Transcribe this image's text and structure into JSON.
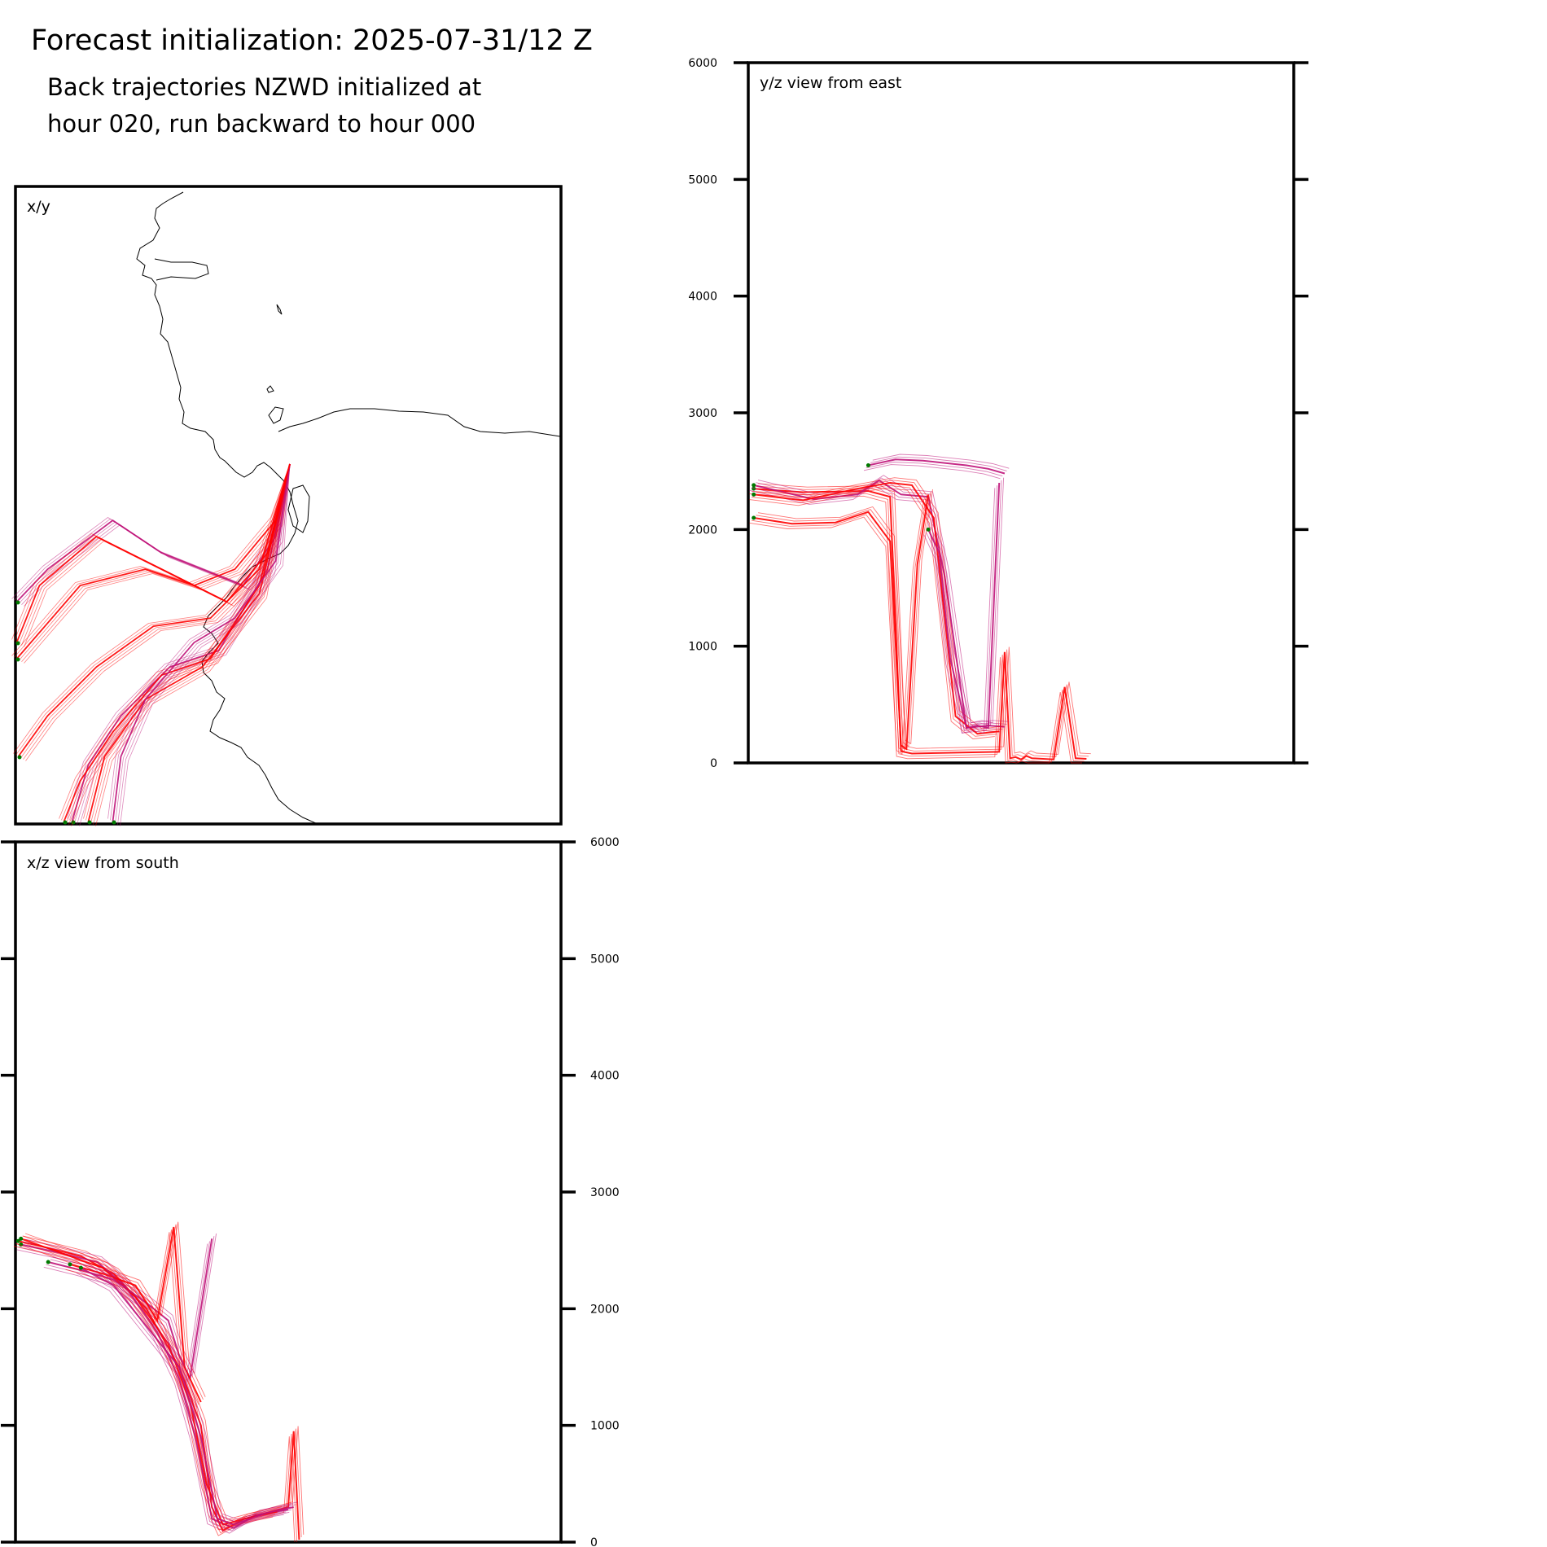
{
  "title": "Forecast initialization: 2025-07-31/12 Z",
  "subtitle_lines": [
    "Back trajectories NZWD initialized at",
    "hour 020, run backward to hour 000"
  ],
  "colors": {
    "trajectory_low": "#ff0000",
    "trajectory_high": "#c0147a",
    "endpoint_marker": "#007a00",
    "coastline": "#000000"
  },
  "chart_data": [
    {
      "type": "line",
      "panel": "x/y",
      "label": "x/y",
      "title": "",
      "xlabel": "",
      "ylabel": "",
      "note": "map view with coastline and trajectory paths"
    },
    {
      "type": "line",
      "panel": "y/z",
      "label": "y/z view from east",
      "title": "",
      "xlabel": "",
      "ylabel": "",
      "ylim": [
        0,
        6000
      ],
      "yticks": [
        0,
        1000,
        2000,
        3000,
        4000,
        5000,
        6000
      ],
      "ytick_labels": [
        "0",
        "1000",
        "2000",
        "3000",
        "4000",
        "5000",
        "6000"
      ],
      "xlim": [
        0,
        1
      ],
      "series": [
        {
          "x": [
            0.01,
            0.1,
            0.22,
            0.26,
            0.27,
            0.28,
            0.3,
            0.4,
            0.46,
            0.47,
            0.48,
            0.49,
            0.5,
            0.51,
            0.52,
            0.56,
            0.58,
            0.6,
            0.62
          ],
          "y": [
            2350,
            2320,
            2330,
            2280,
            1200,
            100,
            80,
            90,
            95,
            950,
            40,
            50,
            30,
            60,
            40,
            30,
            650,
            40,
            35
          ]
        },
        {
          "x": [
            0.01,
            0.12,
            0.2,
            0.24,
            0.28,
            0.33,
            0.36,
            0.4,
            0.44,
            0.47
          ],
          "y": [
            2380,
            2260,
            2300,
            2420,
            2300,
            2280,
            1600,
            300,
            320,
            310
          ]
        },
        {
          "x": [
            0.01,
            0.1,
            0.2,
            0.26,
            0.3,
            0.34,
            0.38,
            0.42,
            0.46
          ],
          "y": [
            2300,
            2250,
            2350,
            2400,
            2380,
            2100,
            400,
            250,
            270
          ]
        },
        {
          "x": [
            0.22,
            0.27,
            0.32,
            0.36,
            0.4,
            0.44,
            0.47
          ],
          "y": [
            2550,
            2600,
            2590,
            2570,
            2550,
            2520,
            2480
          ]
        },
        {
          "x": [
            0.01,
            0.08,
            0.16,
            0.22,
            0.26,
            0.28,
            0.29,
            0.31,
            0.33
          ],
          "y": [
            2100,
            2050,
            2060,
            2150,
            1900,
            150,
            120,
            1700,
            2300
          ]
        },
        {
          "x": [
            0.33,
            0.35,
            0.37,
            0.4,
            0.42,
            0.44,
            0.46
          ],
          "y": [
            2000,
            1800,
            900,
            300,
            320,
            300,
            2400
          ]
        }
      ]
    },
    {
      "type": "line",
      "panel": "x/z",
      "label": "x/z view from south",
      "title": "",
      "xlabel": "",
      "ylabel": "",
      "ylim": [
        0,
        6000
      ],
      "yticks": [
        0,
        1000,
        2000,
        3000,
        4000,
        5000,
        6000
      ],
      "ytick_labels": [
        "0",
        "1000",
        "2000",
        "3000",
        "4000",
        "5000",
        "6000"
      ],
      "xlim": [
        0,
        1
      ],
      "series": [
        {
          "x": [
            0.005,
            0.06,
            0.12,
            0.18,
            0.24,
            0.3,
            0.34,
            0.36,
            0.38,
            0.42,
            0.46,
            0.5,
            0.51,
            0.52
          ],
          "y": [
            2580,
            2520,
            2450,
            2300,
            2000,
            1500,
            1000,
            300,
            100,
            200,
            250,
            300,
            950,
            20
          ]
        },
        {
          "x": [
            0.01,
            0.08,
            0.15,
            0.2,
            0.26,
            0.3,
            0.33,
            0.36,
            0.4,
            0.44,
            0.5
          ],
          "y": [
            2550,
            2480,
            2400,
            2200,
            1800,
            1400,
            900,
            200,
            120,
            230,
            280
          ]
        },
        {
          "x": [
            0.01,
            0.1,
            0.16,
            0.22,
            0.28,
            0.32,
            0.35,
            0.38,
            0.42,
            0.48
          ],
          "y": [
            2600,
            2450,
            2350,
            2100,
            1700,
            1200,
            500,
            150,
            200,
            260
          ]
        },
        {
          "x": [
            0.06,
            0.12,
            0.18,
            0.24,
            0.28,
            0.3,
            0.32,
            0.36
          ],
          "y": [
            2400,
            2330,
            2250,
            2050,
            1900,
            1600,
            1400,
            2600
          ]
        },
        {
          "x": [
            0.1,
            0.16,
            0.22,
            0.26,
            0.29,
            0.31,
            0.34
          ],
          "y": [
            2380,
            2300,
            2200,
            1900,
            2700,
            1500,
            1200
          ]
        },
        {
          "x": [
            0.12,
            0.18,
            0.24,
            0.3,
            0.34,
            0.37,
            0.4,
            0.46,
            0.51
          ],
          "y": [
            2350,
            2200,
            1850,
            1500,
            900,
            200,
            150,
            250,
            300
          ]
        }
      ]
    }
  ]
}
